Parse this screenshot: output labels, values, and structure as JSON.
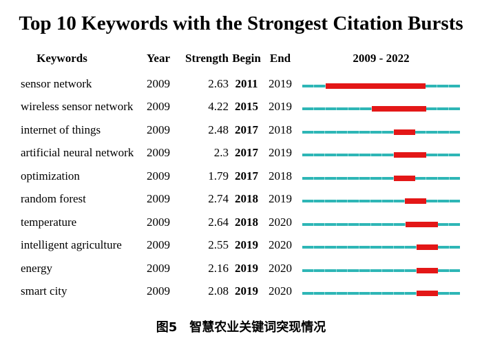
{
  "figure": {
    "title": "Top 10 Keywords with the Strongest Citation Bursts",
    "caption": "图5　智慧农业关键词突现情况"
  },
  "columns": {
    "keywords": "Keywords",
    "year": "Year",
    "strength": "Strength",
    "begin": "Begin",
    "end": "End",
    "range": "2009 - 2022"
  },
  "colors": {
    "timeline_teal": "#2eb6b6",
    "timeline_tick": "#8fd9d9",
    "burst_red": "#e31717",
    "text": "#000000",
    "background": "#ffffff"
  },
  "chart_data": {
    "type": "table",
    "title": "Top 10 Keywords with the Strongest Citation Bursts",
    "columns": [
      "Keywords",
      "Year",
      "Strength",
      "Begin",
      "End",
      "2009 - 2022"
    ],
    "timeline_range": [
      2009,
      2022
    ],
    "legend": {
      "teal_line": "full period 2009-2022",
      "red_segment": "citation burst interval (Begin to End year)"
    },
    "rows": [
      {
        "keyword": "sensor network",
        "year": "2009",
        "strength": "2.63",
        "begin": 2011,
        "end": 2019
      },
      {
        "keyword": "wireless sensor network",
        "year": "2009",
        "strength": "4.22",
        "begin": 2015,
        "end": 2019
      },
      {
        "keyword": "internet of things",
        "year": "2009",
        "strength": "2.48",
        "begin": 2017,
        "end": 2018
      },
      {
        "keyword": "artificial neural network",
        "year": "2009",
        "strength": "2.3",
        "begin": 2017,
        "end": 2019
      },
      {
        "keyword": "optimization",
        "year": "2009",
        "strength": "1.79",
        "begin": 2017,
        "end": 2018
      },
      {
        "keyword": "random forest",
        "year": "2009",
        "strength": "2.74",
        "begin": 2018,
        "end": 2019
      },
      {
        "keyword": "temperature",
        "year": "2009",
        "strength": "2.64",
        "begin": 2018,
        "end": 2020
      },
      {
        "keyword": "intelligent agriculture",
        "year": "2009",
        "strength": "2.55",
        "begin": 2019,
        "end": 2020
      },
      {
        "keyword": "energy",
        "year": "2009",
        "strength": "2.16",
        "begin": 2019,
        "end": 2020
      },
      {
        "keyword": "smart city",
        "year": "2009",
        "strength": "2.08",
        "begin": 2019,
        "end": 2020
      }
    ]
  }
}
